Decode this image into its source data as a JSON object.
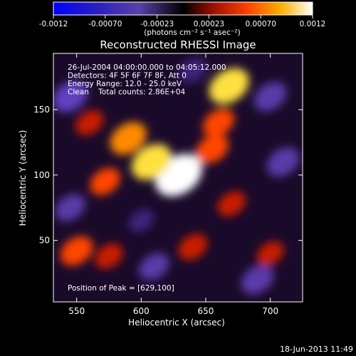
{
  "chart_data": {
    "type": "heatmap",
    "title": "Reconstructed RHESSI Image",
    "xlabel": "Heliocentric X (arcsec)",
    "ylabel": "Heliocentric Y (arcsec)",
    "xlim": [
      532,
      725
    ],
    "ylim": [
      3,
      193
    ],
    "x_ticks": [
      550,
      600,
      650,
      700
    ],
    "y_ticks": [
      50,
      100,
      150
    ],
    "colorbar": {
      "ticks": [
        "-0.0012",
        "-0.00070",
        "-0.00023",
        "0.00023",
        "0.00070",
        "0.0012"
      ],
      "range": [
        -0.0012,
        0.0012
      ],
      "label": "(photons cm⁻² s⁻¹ asec⁻²)"
    },
    "annotations": [
      "26-Jul-2004 04:00:00.000 to 04:05:12.000",
      "Detectors: 4F 5F 6F 7F 8F, Att 0",
      "Energy Range: 12.0 - 25.0 keV",
      "Clean    Total counts: 2.86E+04"
    ],
    "peak_text": "Position of Peak = [629,100]",
    "peak": {
      "x": 629,
      "y": 100,
      "value": 0.0012
    },
    "sources": [
      {
        "x": 629,
        "y": 100,
        "value": 0.0012
      },
      {
        "x": 608,
        "y": 110,
        "value": 0.0009
      },
      {
        "x": 590,
        "y": 128,
        "value": 0.00075
      },
      {
        "x": 572,
        "y": 95,
        "value": 0.0005
      },
      {
        "x": 655,
        "y": 120,
        "value": 0.0006
      },
      {
        "x": 668,
        "y": 168,
        "value": 0.0009
      },
      {
        "x": 660,
        "y": 140,
        "value": 0.00055
      },
      {
        "x": 670,
        "y": 78,
        "value": 0.0004
      },
      {
        "x": 550,
        "y": 42,
        "value": 0.0006
      },
      {
        "x": 575,
        "y": 38,
        "value": 0.0004
      },
      {
        "x": 640,
        "y": 45,
        "value": 0.00045
      },
      {
        "x": 560,
        "y": 140,
        "value": 0.0004
      },
      {
        "x": 700,
        "y": 40,
        "value": 0.00035
      },
      {
        "x": 545,
        "y": 160,
        "value": -0.0007
      },
      {
        "x": 700,
        "y": 160,
        "value": -0.0006
      },
      {
        "x": 710,
        "y": 110,
        "value": -0.0006
      },
      {
        "x": 690,
        "y": 20,
        "value": -0.0006
      },
      {
        "x": 610,
        "y": 30,
        "value": -0.0005
      },
      {
        "x": 545,
        "y": 75,
        "value": -0.0005
      },
      {
        "x": 640,
        "y": 180,
        "value": -0.0004
      },
      {
        "x": 600,
        "y": 65,
        "value": -0.0003
      }
    ]
  },
  "footer": {
    "date": "18-Jun-2013 11:49"
  }
}
